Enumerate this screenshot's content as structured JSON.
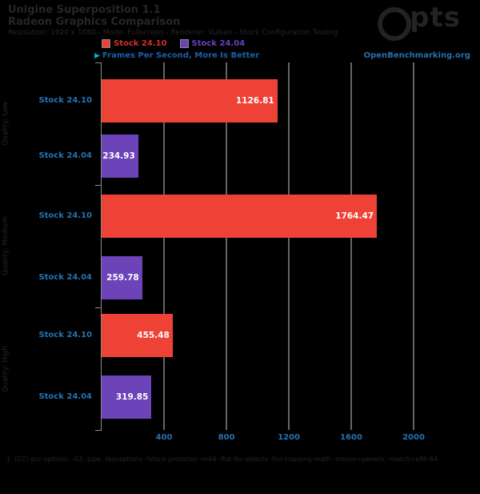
{
  "title": {
    "line1": "Unigine Superposition 1.1",
    "line2": "Radeon Graphics Comparison",
    "line3": "Resolution: 1920 x 1080 - Mode: Fullscreen - Renderer: Vulkan - Stock Configuration Testing"
  },
  "logo": {
    "text": "pts"
  },
  "legend": {
    "items": [
      {
        "label": "Stock 24.10",
        "color": "#ee4237",
        "text_color": "#d82c2c"
      },
      {
        "label": "Stock 24.04",
        "color": "#6c43b8",
        "text_color": "#6b3fc2"
      }
    ],
    "scale_note": "Frames Per Second, More Is Better",
    "arrow_icon": "▶",
    "watermark": "OpenBenchmarking.org"
  },
  "chart_data": {
    "type": "bar",
    "orientation": "horizontal",
    "title": "Unigine Superposition 1.1",
    "xlabel": "Frames Per Second",
    "ylabel": "",
    "xlim": [
      0,
      2000
    ],
    "xticks": [
      400,
      800,
      1200,
      1600,
      2000
    ],
    "grid": true,
    "legend_position": "top",
    "categories": [
      "Quality: Low",
      "Quality: Medium",
      "Quality: High"
    ],
    "series": [
      {
        "name": "Stock 24.10",
        "color": "#ee4237",
        "values": [
          1126.81,
          1764.47,
          455.48
        ]
      },
      {
        "name": "Stock 24.04",
        "color": "#6c43b8",
        "values": [
          234.93,
          259.78,
          319.85
        ]
      }
    ],
    "rows": [
      {
        "label": "Stock 24.10",
        "value": "1126.81",
        "num": 1126.81,
        "series": 0
      },
      {
        "label": "Stock 24.04",
        "value": "234.93",
        "num": 234.93,
        "series": 1
      },
      {
        "label": "Stock 24.10",
        "value": "1764.47",
        "num": 1764.47,
        "series": 0
      },
      {
        "label": "Stock 24.04",
        "value": "259.78",
        "num": 259.78,
        "series": 1
      },
      {
        "label": "Stock 24.10",
        "value": "455.48",
        "num": 455.48,
        "series": 0
      },
      {
        "label": "Stock 24.04",
        "value": "319.85",
        "num": 319.85,
        "series": 1
      }
    ]
  },
  "footer": "1. (CC) gcc options: -O3 -pipe -fexceptions -fstack-protector -m64 -ffat-lto-objects -fno-trapping-math -mtune=generic -march=x86-64"
}
